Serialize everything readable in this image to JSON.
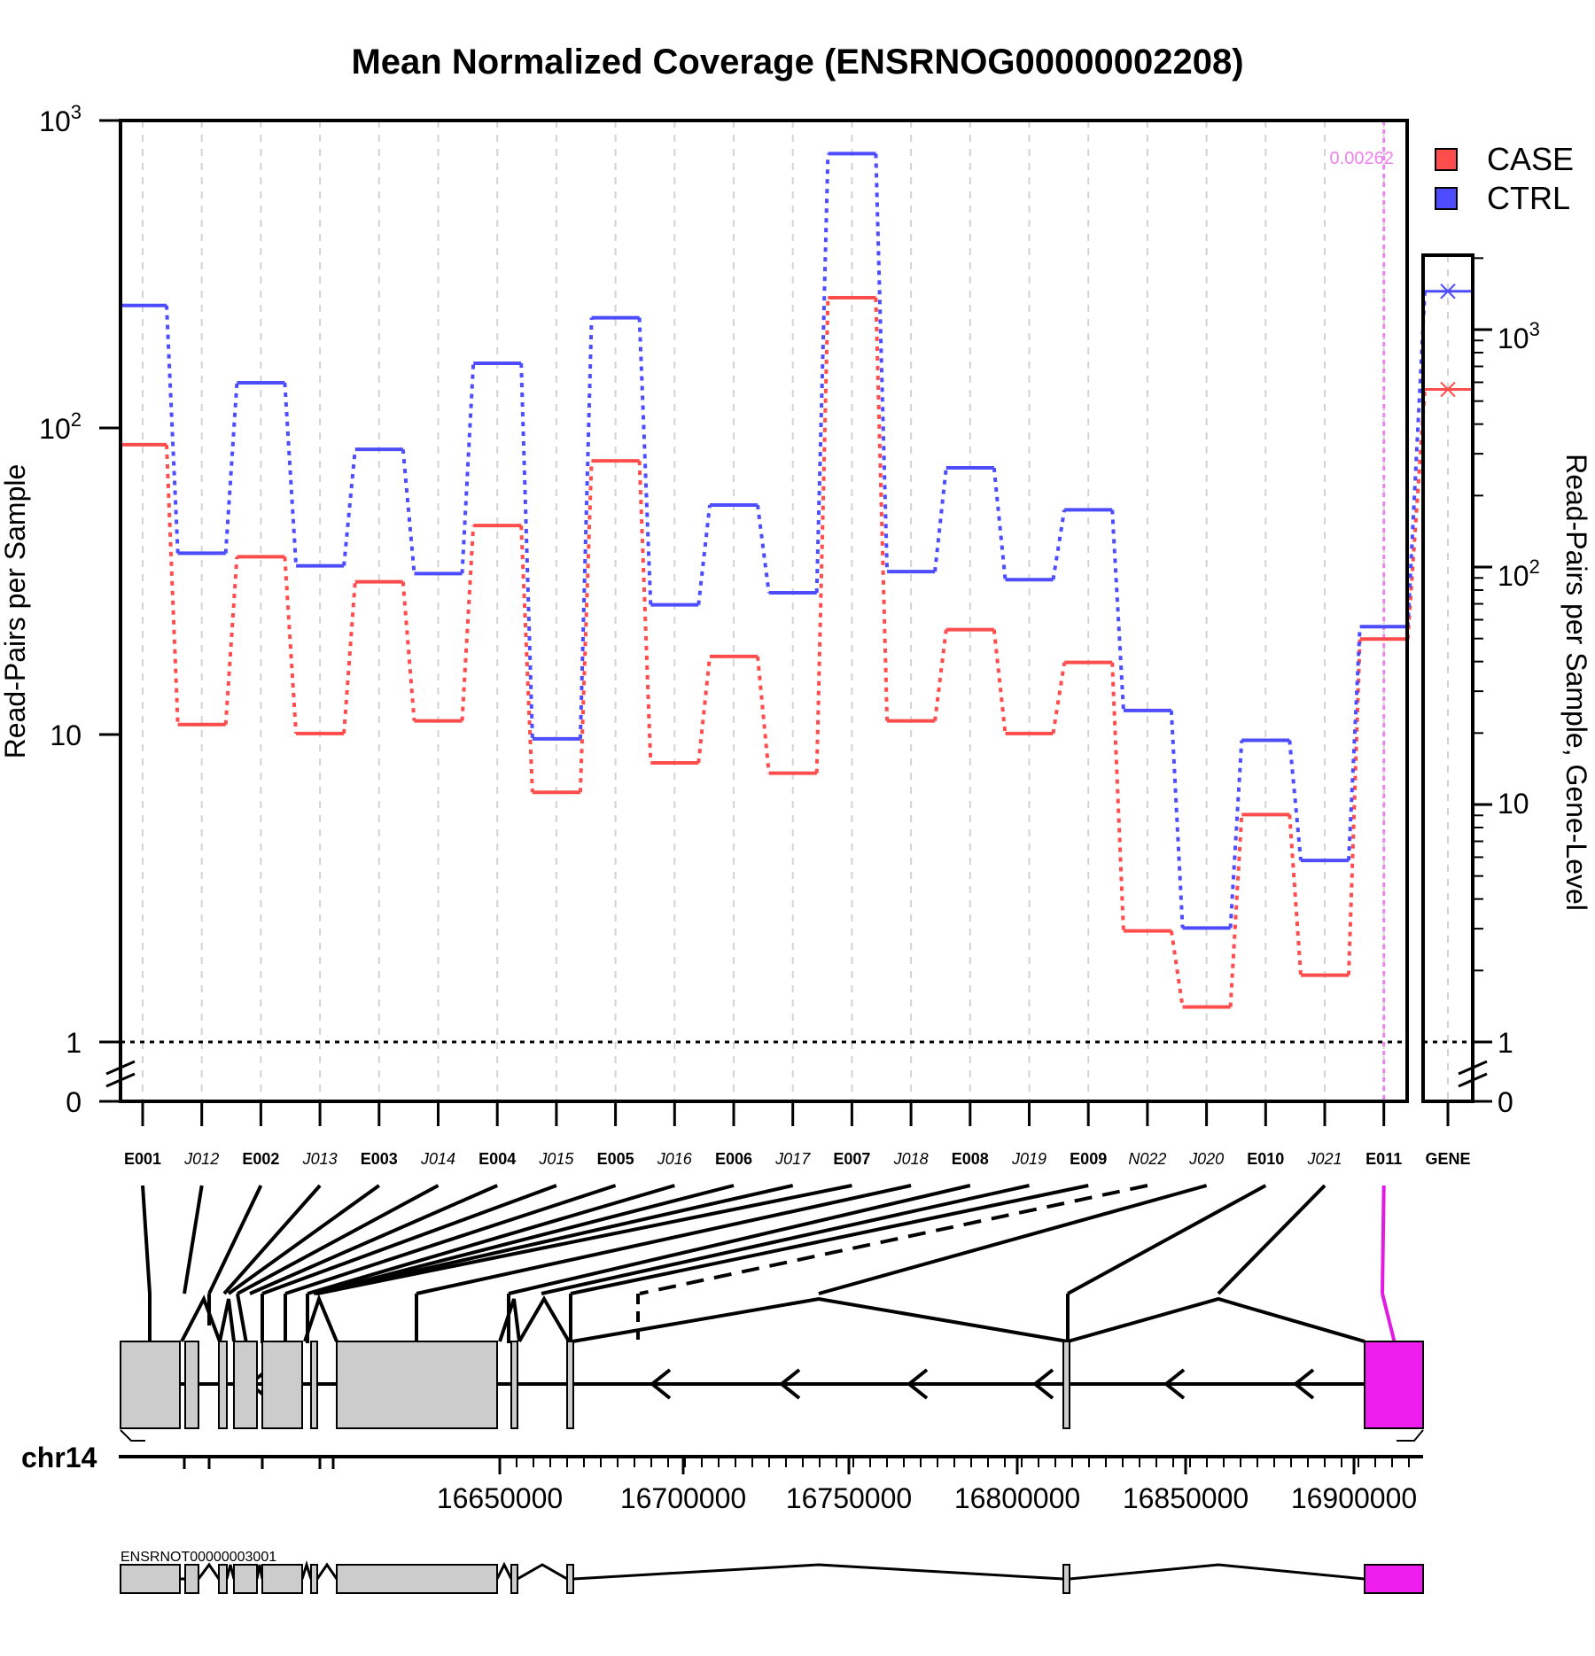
{
  "chart_data": {
    "type": "line",
    "title": "Mean Normalized Coverage (ENSRNOG00000002208)",
    "ylabel": "Read-Pairs per Sample",
    "ylabel_right": "Read-Pairs per Sample, Gene-Level",
    "yscale": "log",
    "ylim": [
      1,
      1000
    ],
    "y_ticks": [
      "0",
      "1",
      "10",
      "10^2",
      "10^3"
    ],
    "y_ticks_right": [
      "0",
      "1",
      "10",
      "10^2",
      "10^3"
    ],
    "categories": [
      "E001",
      "J012",
      "E002",
      "J013",
      "E003",
      "J014",
      "E004",
      "J015",
      "E005",
      "J016",
      "E006",
      "J017",
      "E007",
      "J018",
      "E008",
      "J019",
      "E009",
      "N022",
      "J020",
      "E010",
      "J021",
      "E011"
    ],
    "junction_categories": [
      "J012",
      "J013",
      "J014",
      "J015",
      "J016",
      "J017",
      "J018",
      "J019",
      "N022",
      "J020",
      "J021"
    ],
    "highlight": {
      "feature": "E011",
      "pvalue": "0.00262"
    },
    "series": [
      {
        "name": "CASE",
        "color": "#ff4d4d",
        "values": [
          88,
          10.8,
          38,
          10.1,
          31.5,
          11.1,
          48,
          6.5,
          78,
          8.1,
          18,
          7.5,
          265,
          11.1,
          22,
          10.1,
          17.2,
          2.3,
          1.3,
          5.5,
          1.65,
          20.5
        ]
      },
      {
        "name": "CTRL",
        "color": "#4d4dff",
        "values": [
          250,
          39,
          140,
          35.5,
          85,
          33.5,
          162,
          9.7,
          228,
          26.5,
          56,
          29,
          780,
          34,
          74,
          32,
          54,
          12,
          2.35,
          9.6,
          3.9,
          22.5
        ]
      }
    ],
    "gene_level": {
      "label": "GENE",
      "ylim": [
        1,
        2000
      ],
      "values": [
        {
          "series": "CASE",
          "value": 560
        },
        {
          "series": "CTRL",
          "value": 1450
        }
      ]
    },
    "legend_position": "top-right",
    "grid": "vertical dashed"
  },
  "genome": {
    "chrom_label": "chr14",
    "axis_labels": [
      "16650000",
      "16700000",
      "16750000",
      "16800000",
      "16850000",
      "16900000"
    ],
    "transcript_label": "ENSRNOT00000003001"
  }
}
